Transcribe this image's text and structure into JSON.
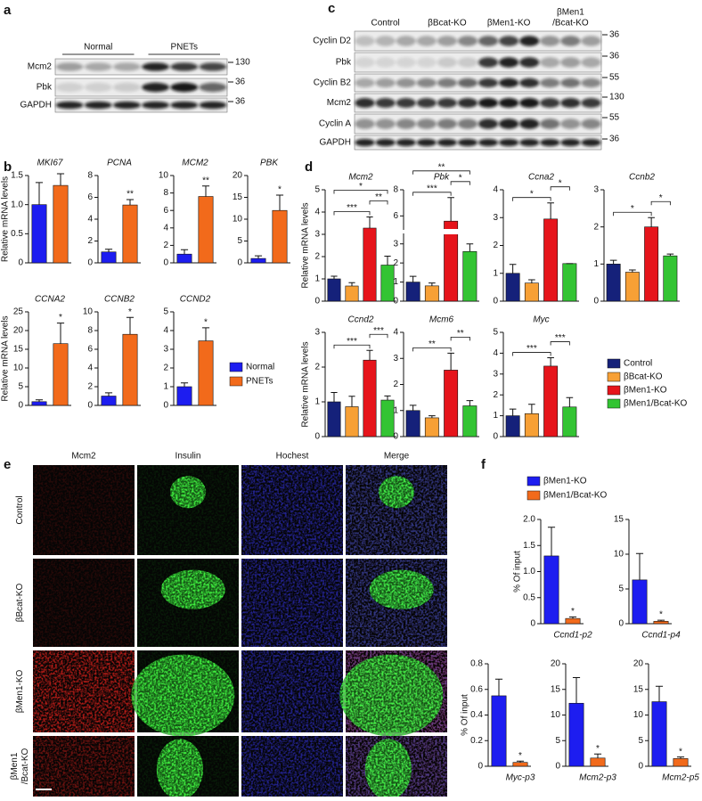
{
  "panel_labels": [
    "a",
    "b",
    "c",
    "d",
    "e",
    "f"
  ],
  "blots": [
    {
      "lanes": [
        [
          "Normal"
        ],
        [
          "PNETs"
        ]
      ],
      "rows": [
        {
          "label": "Mcm2",
          "marker": 130
        },
        {
          "label": "Pbk",
          "marker": 36
        },
        {
          "label": "GAPDH",
          "marker": 36
        }
      ]
    },
    {
      "lanes": [
        [
          "Control"
        ],
        [
          "βBcat-KO"
        ],
        [
          "βMen1-KO"
        ],
        [
          "βMen1",
          "/Bcat-KO"
        ]
      ],
      "rows": [
        {
          "label": "Cyclin D2",
          "marker": 36
        },
        {
          "label": "Pbk",
          "marker": 36
        },
        {
          "label": "Cyclin B2",
          "marker": 55
        },
        {
          "label": "Mcm2",
          "marker": 130
        },
        {
          "label": "Cyclin A",
          "marker": 55
        },
        {
          "label": "GAPDH",
          "marker": 36
        }
      ]
    }
  ],
  "legends": [
    {
      "items": [
        {
          "name": "Normal",
          "color": "#1d1df0"
        },
        {
          "name": "PNETs",
          "color": "#f26a1b"
        }
      ]
    },
    {
      "items": [
        {
          "name": "Control",
          "color": "#15217a"
        },
        {
          "name": "βBcat-KO",
          "color": "#f7a035"
        },
        {
          "name": "βMen1-KO",
          "color": "#e6141b"
        },
        {
          "name": "βMen1/Bcat-KO",
          "color": "#33c433"
        }
      ]
    },
    {
      "items": [
        {
          "name": "βMen1-KO",
          "color": "#1d1df0"
        },
        {
          "name": "βMen1/Bcat-KO",
          "color": "#f26a1b"
        }
      ]
    }
  ],
  "chart_data": [
    {
      "type": "bar",
      "title": "MKI67",
      "ylabel": "Relative mRNA levels",
      "values": [
        1.0,
        1.33
      ],
      "errors": [
        0.38,
        0.2
      ],
      "ylim": [
        0,
        1.5
      ],
      "yticks": [
        0,
        0.5,
        {
          "value": 1,
          "label": "1.0"
        },
        1.5
      ]
    },
    {
      "type": "bar",
      "title": "PCNA",
      "values": [
        1.0,
        5.3
      ],
      "errors": [
        0.25,
        0.5
      ],
      "annotation": "**",
      "ylim": [
        0,
        8
      ],
      "yticks": [
        0,
        2,
        4,
        6,
        8
      ]
    },
    {
      "type": "bar",
      "title": "MCM2",
      "values": [
        1.0,
        7.6
      ],
      "errors": [
        0.5,
        1.2
      ],
      "annotation": "**",
      "ylim": [
        0,
        10
      ],
      "yticks": [
        0,
        2,
        4,
        6,
        8,
        10
      ]
    },
    {
      "type": "bar",
      "title": "PBK",
      "values": [
        1.0,
        12
      ],
      "errors": [
        0.6,
        3.5
      ],
      "annotation": "*",
      "ylim": [
        0,
        20
      ],
      "yticks": [
        0,
        5,
        10,
        15,
        20
      ]
    },
    {
      "type": "bar",
      "title": "CCNA2",
      "ylabel": "Relative mRNA levels",
      "values": [
        1.0,
        16.5
      ],
      "errors": [
        0.5,
        5.5
      ],
      "annotation": "*",
      "ylim": [
        0,
        25
      ],
      "yticks": [
        0,
        5,
        10,
        15,
        20,
        25
      ]
    },
    {
      "type": "bar",
      "title": "CCNB2",
      "values": [
        1.0,
        7.6
      ],
      "errors": [
        0.35,
        1.8
      ],
      "annotation": "*",
      "ylim": [
        0,
        10
      ],
      "yticks": [
        0,
        2,
        4,
        6,
        8,
        10
      ]
    },
    {
      "type": "bar",
      "title": "CCND2",
      "values": [
        1.0,
        3.45
      ],
      "errors": [
        0.2,
        0.7
      ],
      "annotation": "*",
      "ylim": [
        0,
        5
      ],
      "yticks": [
        0,
        1,
        2,
        3,
        4,
        5
      ]
    },
    {
      "type": "bar",
      "title": "Mcm2",
      "ylabel": "Relative mRNA levels",
      "values": [
        1.0,
        0.68,
        3.28,
        1.62
      ],
      "errors": [
        0.12,
        0.15,
        0.5,
        0.4
      ],
      "ylim": [
        0,
        5
      ],
      "yticks": [
        0,
        1,
        2,
        3,
        4,
        5
      ],
      "brackets": [
        {
          "between": [
            0,
            2
          ],
          "label": "***"
        },
        {
          "between": [
            2,
            3
          ],
          "label": "**"
        },
        {
          "between": [
            0,
            3
          ],
          "label": "*"
        }
      ]
    },
    {
      "type": "bar",
      "title": "Pbk",
      "values": [
        1.0,
        0.8,
        5.6,
        2.6
      ],
      "errors": [
        0.3,
        0.15,
        1.8,
        0.4
      ],
      "ylim": [
        0,
        8
      ],
      "ybreak": [
        3.5,
        5
      ],
      "yticks": [
        0,
        1,
        2,
        3,
        6,
        8
      ],
      "brackets": [
        {
          "between": [
            0,
            2
          ],
          "label": "***"
        },
        {
          "between": [
            2,
            3
          ],
          "label": "*"
        },
        {
          "between": [
            0,
            3
          ],
          "label": "**"
        }
      ]
    },
    {
      "type": "bar",
      "title": "Ccna2",
      "values": [
        1.0,
        0.65,
        2.95,
        1.35
      ],
      "errors": [
        0.32,
        0.12,
        0.58,
        0
      ],
      "ylim": [
        0,
        4
      ],
      "yticks": [
        0,
        1,
        2,
        3,
        4
      ],
      "brackets": [
        {
          "between": [
            0,
            2
          ],
          "label": "*"
        },
        {
          "between": [
            2,
            3
          ],
          "label": "*"
        }
      ]
    },
    {
      "type": "bar",
      "title": "Ccnb2",
      "values": [
        1.0,
        0.78,
        2.0,
        1.22
      ],
      "errors": [
        0.1,
        0.06,
        0.25,
        0.05
      ],
      "ylim": [
        0,
        3
      ],
      "yticks": [
        0,
        1,
        2,
        3
      ],
      "brackets": [
        {
          "between": [
            0,
            2
          ],
          "label": "*"
        },
        {
          "between": [
            2,
            3
          ],
          "label": "*"
        }
      ]
    },
    {
      "type": "bar",
      "title": "Ccnd2",
      "ylabel": "Relative mRNA levels",
      "values": [
        1.0,
        0.86,
        2.2,
        1.05
      ],
      "errors": [
        0.27,
        0.3,
        0.28,
        0.12
      ],
      "ylim": [
        0,
        3
      ],
      "yticks": [
        0,
        1,
        2,
        3
      ],
      "brackets": [
        {
          "between": [
            0,
            2
          ],
          "label": "***"
        },
        {
          "between": [
            2,
            3
          ],
          "label": "***"
        }
      ]
    },
    {
      "type": "bar",
      "title": "Mcm6",
      "values": [
        1.0,
        0.72,
        2.55,
        1.18
      ],
      "errors": [
        0.2,
        0.08,
        0.65,
        0.2
      ],
      "ylim": [
        0,
        4
      ],
      "yticks": [
        0,
        1,
        2,
        3,
        4
      ],
      "brackets": [
        {
          "between": [
            0,
            2
          ],
          "label": "**"
        },
        {
          "between": [
            2,
            3
          ],
          "label": "**"
        }
      ]
    },
    {
      "type": "bar",
      "title": "Myc",
      "values": [
        1.0,
        1.1,
        3.38,
        1.42
      ],
      "errors": [
        0.32,
        0.45,
        0.4,
        0.45
      ],
      "ylim": [
        0,
        5
      ],
      "yticks": [
        0,
        1,
        2,
        3,
        4,
        5
      ],
      "brackets": [
        {
          "between": [
            0,
            2
          ],
          "label": "***"
        },
        {
          "between": [
            2,
            3
          ],
          "label": "***"
        }
      ]
    },
    {
      "type": "bar",
      "xlabel": "Ccnd1-p2",
      "ylabel": "% Of input",
      "values": [
        1.3,
        0.1
      ],
      "errors": [
        0.55,
        0.03
      ],
      "annotation": "*",
      "ylim": [
        0,
        2
      ],
      "yticks": [
        0,
        0.5,
        {
          "value": 1,
          "label": "1.0"
        },
        1.5,
        {
          "value": 2,
          "label": "2.0"
        }
      ]
    },
    {
      "type": "bar",
      "xlabel": "Ccnd1-p4",
      "values": [
        6.3,
        0.35
      ],
      "errors": [
        3.8,
        0.15
      ],
      "annotation": "*",
      "ylim": [
        0,
        15
      ],
      "yticks": [
        0,
        5,
        10,
        15
      ]
    },
    {
      "type": "bar",
      "xlabel": "Myc-p3",
      "ylabel": "% Of input",
      "values": [
        0.55,
        0.03
      ],
      "errors": [
        0.13,
        0.01
      ],
      "annotation": "*",
      "ylim": [
        0,
        0.8
      ],
      "yticks": [
        0,
        0.2,
        0.4,
        0.6,
        0.8
      ]
    },
    {
      "type": "bar",
      "xlabel": "Mcm2-p3",
      "values": [
        12.3,
        1.6
      ],
      "errors": [
        5,
        0.8
      ],
      "annotation": "*",
      "ylim": [
        0,
        20
      ],
      "yticks": [
        0,
        5,
        10,
        15,
        20
      ]
    },
    {
      "type": "bar",
      "xlabel": "Mcm2-p5",
      "values": [
        12.6,
        1.5
      ],
      "errors": [
        3,
        0.3
      ],
      "annotation": "*",
      "ylim": [
        0,
        20
      ],
      "yticks": [
        0,
        5,
        10,
        15,
        20
      ]
    }
  ],
  "micrographs": {
    "channels": [
      {
        "label": "Mcm2",
        "color": "#e8231c"
      },
      {
        "label": "Insulin",
        "color": "#22c022"
      },
      {
        "label": "Hochest",
        "color": "#4a4aff"
      },
      {
        "label": "Merge",
        "color": "#f0902a"
      }
    ],
    "rows": [
      [
        "Control"
      ],
      [
        "βBcat-KO"
      ],
      [
        "βMen1-KO"
      ],
      [
        "βMen1",
        "/Bcat-KO"
      ]
    ]
  }
}
